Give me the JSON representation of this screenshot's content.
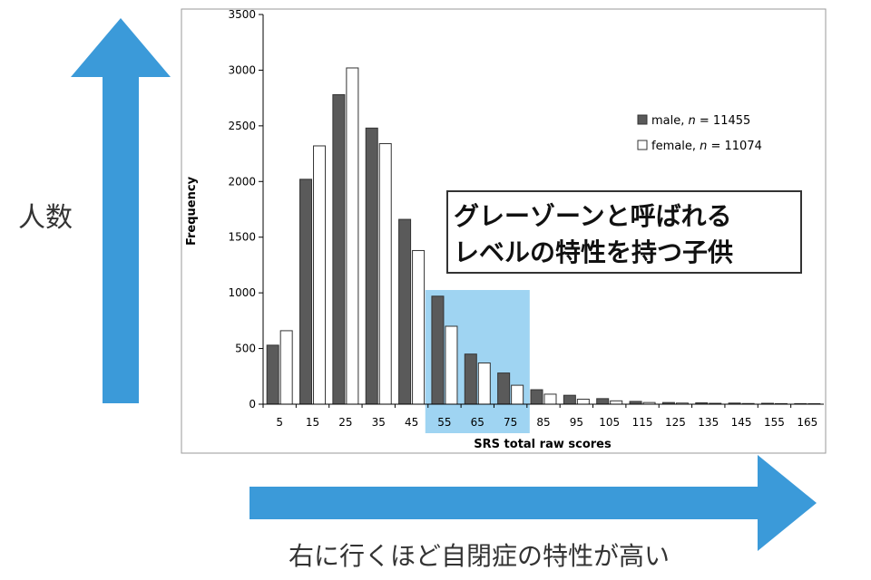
{
  "vertical_arrow": {
    "label": "人数",
    "color": "#3b9ad9"
  },
  "horizontal_arrow": {
    "label": "右に行くほど自閉症の特性が高い",
    "color": "#3b9ad9"
  },
  "callout": {
    "line1": "グレーゾーンと呼ばれる",
    "line2": "レベルの特性を持つ子供"
  },
  "highlight": {
    "from": "55",
    "to": "75",
    "color": "#8ecdf0"
  },
  "chart_data": {
    "type": "bar",
    "xlabel": "SRS total raw scores",
    "ylabel": "Frequency",
    "ylim": [
      0,
      3500
    ],
    "yticks": [
      0,
      500,
      1000,
      1500,
      2000,
      2500,
      3000,
      3500
    ],
    "grid": false,
    "legend_position": "top-right",
    "categories": [
      "5",
      "15",
      "25",
      "35",
      "45",
      "55",
      "65",
      "75",
      "85",
      "95",
      "105",
      "115",
      "125",
      "135",
      "145",
      "155",
      "165"
    ],
    "series": [
      {
        "name": "male",
        "n_label": "n",
        "n_value": "= 11455",
        "color": "#5a5a5a",
        "values": [
          530,
          2020,
          2780,
          2480,
          1660,
          970,
          450,
          280,
          130,
          80,
          50,
          25,
          15,
          12,
          10,
          8,
          5
        ]
      },
      {
        "name": "female",
        "n_label": "n",
        "n_value": "= 11074",
        "color": "#ffffff",
        "values": [
          660,
          2320,
          3020,
          2340,
          1380,
          700,
          370,
          170,
          90,
          45,
          30,
          15,
          10,
          8,
          6,
          5,
          4
        ]
      }
    ]
  }
}
